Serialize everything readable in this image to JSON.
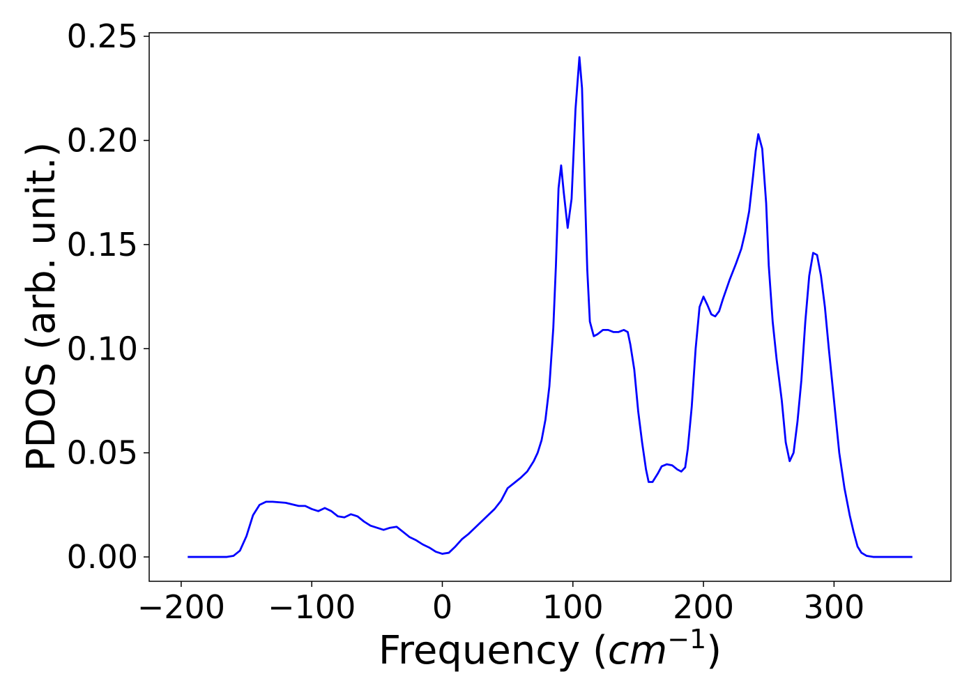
{
  "chart_data": {
    "type": "line",
    "xlabel": [
      "Frequency (",
      "cm",
      "−1",
      ")"
    ],
    "ylabel": "PDOS (arb. unit.)",
    "xlim": [
      -224.5,
      389.5
    ],
    "ylim": [
      -0.0117,
      0.2517
    ],
    "xticks": [
      {
        "value": -200,
        "label": "−200"
      },
      {
        "value": -100,
        "label": "−100"
      },
      0,
      100,
      200,
      300
    ],
    "yticks": [
      {
        "value": 0,
        "label": "0.00"
      },
      {
        "value": 0.05,
        "label": "0.05"
      },
      {
        "value": 0.1,
        "label": "0.10"
      },
      {
        "value": 0.15,
        "label": "0.15"
      },
      {
        "value": 0.2,
        "label": "0.20"
      },
      {
        "value": 0.25,
        "label": "0.25"
      }
    ],
    "grid": false,
    "x": [
      -195,
      -180,
      -170,
      -165,
      -160,
      -155,
      -150,
      -145,
      -140,
      -135,
      -130,
      -120,
      -110,
      -105,
      -100,
      -95,
      -90,
      -85,
      -80,
      -75,
      -70,
      -65,
      -60,
      -55,
      -50,
      -45,
      -40,
      -35,
      -30,
      -25,
      -20,
      -15,
      -10,
      -5,
      0,
      5,
      10,
      15,
      20,
      25,
      30,
      35,
      40,
      45,
      50,
      55,
      60,
      65,
      70,
      73,
      76,
      79,
      82,
      85,
      87,
      89,
      91,
      93,
      96,
      99,
      102,
      105,
      107,
      109,
      111,
      113,
      116,
      119,
      123,
      127,
      131,
      135,
      139,
      142,
      144,
      147,
      150,
      153,
      156,
      158,
      161,
      165,
      168,
      172,
      176,
      180,
      183,
      186,
      188,
      191,
      194,
      197,
      200,
      203,
      206,
      209,
      212,
      215,
      220,
      225,
      229,
      232,
      235,
      238,
      240,
      242,
      245,
      248,
      250,
      253,
      256,
      260,
      263,
      266,
      269,
      272,
      275,
      278,
      281,
      284,
      287,
      290,
      293,
      296,
      300,
      304,
      308,
      312,
      315,
      318,
      321,
      325,
      330,
      340,
      360
    ],
    "series": [
      {
        "name": "PDOS",
        "color": "#0000ff",
        "values": [
          0,
          0,
          0,
          0,
          0.0005,
          0.003,
          0.01,
          0.02,
          0.025,
          0.0265,
          0.0265,
          0.026,
          0.0245,
          0.0245,
          0.023,
          0.022,
          0.0235,
          0.022,
          0.0195,
          0.019,
          0.0205,
          0.0195,
          0.017,
          0.015,
          0.014,
          0.013,
          0.014,
          0.0145,
          0.012,
          0.0095,
          0.008,
          0.006,
          0.0045,
          0.0025,
          0.0015,
          0.002,
          0.005,
          0.0085,
          0.011,
          0.014,
          0.017,
          0.02,
          0.023,
          0.027,
          0.033,
          0.0355,
          0.038,
          0.041,
          0.046,
          0.05,
          0.056,
          0.066,
          0.082,
          0.11,
          0.14,
          0.177,
          0.188,
          0.175,
          0.158,
          0.172,
          0.215,
          0.24,
          0.225,
          0.18,
          0.138,
          0.113,
          0.106,
          0.107,
          0.109,
          0.109,
          0.108,
          0.108,
          0.109,
          0.108,
          0.102,
          0.09,
          0.07,
          0.055,
          0.042,
          0.036,
          0.036,
          0.04,
          0.0435,
          0.0445,
          0.044,
          0.042,
          0.041,
          0.043,
          0.052,
          0.072,
          0.1,
          0.12,
          0.125,
          0.121,
          0.1165,
          0.1155,
          0.118,
          0.124,
          0.133,
          0.141,
          0.148,
          0.156,
          0.166,
          0.183,
          0.195,
          0.203,
          0.196,
          0.17,
          0.14,
          0.113,
          0.095,
          0.075,
          0.055,
          0.046,
          0.05,
          0.065,
          0.085,
          0.113,
          0.135,
          0.146,
          0.145,
          0.135,
          0.12,
          0.1,
          0.075,
          0.05,
          0.033,
          0.02,
          0.012,
          0.005,
          0.002,
          0.0005,
          0,
          0,
          0
        ]
      }
    ]
  }
}
